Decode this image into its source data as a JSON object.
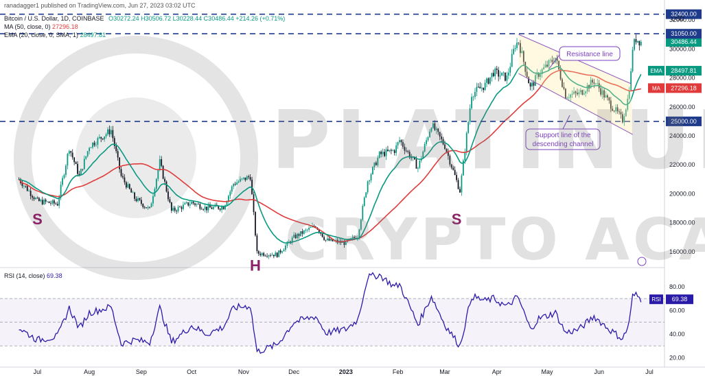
{
  "header": {
    "publisher": "ranadagger1 published on TradingView.com, Jun 27, 2023 03:02 UTC",
    "symbol": "Bitcoin / U.S. Dollar, 1D, COINBASE",
    "ohlc": "O30272.24 H30506.72 L30228.44 C30486.44 +214.26 (+0.71%)",
    "ma_label": "MA (50, close, 0)",
    "ma_value": "27296.18",
    "ema_label": "EMA (20, close, 0, SMA, 1)",
    "ema_value": "28497.81",
    "rsi_label": "RSI (14, close)",
    "rsi_value": "69.38",
    "currency": "USD"
  },
  "watermark": {
    "line1": "PLATINUM",
    "line2": "CRYPTO ACADEMY"
  },
  "colors": {
    "up": "#089981",
    "down": "#131722",
    "ema": "#089981",
    "ma": "#e03a3a",
    "rsi": "#2a1aa8",
    "level": "#1e3a8a",
    "pattern": "#8b2267",
    "annotation": "#7b3fbf"
  },
  "chart_data": [
    {
      "type": "candlestick",
      "title": "Bitcoin / U.S. Dollar, 1D, COINBASE",
      "ylim": [
        15000,
        33000
      ],
      "y_ticks": [
        "16000.00",
        "18000.00",
        "20000.00",
        "22000.00",
        "24000.00",
        "26000.00",
        "28000.00",
        "30000.00",
        "32000.00"
      ],
      "x_ticks": [
        "Jul",
        "Aug",
        "Sep",
        "Oct",
        "Nov",
        "Dec",
        "2023",
        "Feb",
        "Mar",
        "Apr",
        "May",
        "Jun",
        "Jul"
      ],
      "anchor_points": [
        [
          "2022-06-20",
          21000
        ],
        [
          "2022-07-01",
          19500
        ],
        [
          "2022-07-13",
          19300
        ],
        [
          "2022-07-20",
          23200
        ],
        [
          "2022-07-26",
          21200
        ],
        [
          "2022-08-01",
          23300
        ],
        [
          "2022-08-14",
          24400
        ],
        [
          "2022-08-20",
          21200
        ],
        [
          "2022-08-28",
          19700
        ],
        [
          "2022-09-06",
          18900
        ],
        [
          "2022-09-12",
          22200
        ],
        [
          "2022-09-19",
          18800
        ],
        [
          "2022-10-01",
          19400
        ],
        [
          "2022-10-10",
          19000
        ],
        [
          "2022-10-20",
          19100
        ],
        [
          "2022-10-26",
          20700
        ],
        [
          "2022-11-05",
          21200
        ],
        [
          "2022-11-09",
          15900
        ],
        [
          "2022-11-21",
          15800
        ],
        [
          "2022-12-01",
          17000
        ],
        [
          "2022-12-14",
          17800
        ],
        [
          "2022-12-20",
          16800
        ],
        [
          "2023-01-01",
          16600
        ],
        [
          "2023-01-08",
          17100
        ],
        [
          "2023-01-14",
          20900
        ],
        [
          "2023-01-21",
          22700
        ],
        [
          "2023-01-30",
          23000
        ],
        [
          "2023-02-02",
          23700
        ],
        [
          "2023-02-13",
          21800
        ],
        [
          "2023-02-21",
          24800
        ],
        [
          "2023-03-01",
          23300
        ],
        [
          "2023-03-10",
          20200
        ],
        [
          "2023-03-17",
          26900
        ],
        [
          "2023-03-25",
          27500
        ],
        [
          "2023-03-30",
          28400
        ],
        [
          "2023-04-07",
          28000
        ],
        [
          "2023-04-12",
          30300
        ],
        [
          "2023-04-14",
          30500
        ],
        [
          "2023-04-21",
          27300
        ],
        [
          "2023-04-26",
          28300
        ],
        [
          "2023-05-06",
          29400
        ],
        [
          "2023-05-12",
          26800
        ],
        [
          "2023-05-20",
          26900
        ],
        [
          "2023-05-29",
          27800
        ],
        [
          "2023-06-07",
          26300
        ],
        [
          "2023-06-15",
          25100
        ],
        [
          "2023-06-18",
          26500
        ],
        [
          "2023-06-20",
          28300
        ],
        [
          "2023-06-21",
          30100
        ],
        [
          "2023-06-23",
          30700
        ],
        [
          "2023-06-26",
          30486.44
        ]
      ],
      "ema_20_last": 28497.81,
      "ma_50_last": 27296.18,
      "horizontal_levels": [
        {
          "label": "32400.00",
          "value": 32400
        },
        {
          "label": "31050.00",
          "value": 31050
        },
        {
          "label": "25000.00",
          "value": 25000
        }
      ],
      "price_labels": [
        {
          "value": 30486.44,
          "text": "30486.44"
        },
        {
          "value": 28497.81,
          "tag": "EMA",
          "text": "28497.81"
        },
        {
          "value": 27296.18,
          "tag": "MA",
          "text": "27296.18"
        }
      ],
      "pattern_labels": [
        {
          "text": "S",
          "date": "2022-07-01",
          "price": 17900
        },
        {
          "text": "H",
          "date": "2022-11-08",
          "price": 14700
        },
        {
          "text": "S",
          "date": "2023-03-08",
          "price": 17900
        }
      ],
      "channel": {
        "upper": [
          [
            "2023-04-14",
            31000
          ],
          [
            "2023-06-20",
            27600
          ]
        ],
        "lower": [
          [
            "2023-04-14",
            28300
          ],
          [
            "2023-06-21",
            24100
          ]
        ]
      },
      "annotations": [
        {
          "text": "Resistance line"
        },
        {
          "text": "Support line of the descending channel",
          "lines": [
            "Support line of the",
            "descending channel"
          ]
        }
      ]
    },
    {
      "type": "line",
      "title": "RSI (14, close)",
      "ylim": [
        15,
        95
      ],
      "y_ticks": [
        "20.00",
        "40.00",
        "60.00",
        "80.00"
      ],
      "band": [
        30,
        70
      ],
      "anchor_points": [
        [
          "2022-06-20",
          45
        ],
        [
          "2022-07-01",
          35
        ],
        [
          "2022-07-13",
          38
        ],
        [
          "2022-07-20",
          62
        ],
        [
          "2022-07-26",
          45
        ],
        [
          "2022-08-01",
          58
        ],
        [
          "2022-08-14",
          63
        ],
        [
          "2022-08-20",
          32
        ],
        [
          "2022-08-28",
          35
        ],
        [
          "2022-09-06",
          33
        ],
        [
          "2022-09-12",
          62
        ],
        [
          "2022-09-19",
          33
        ],
        [
          "2022-10-01",
          47
        ],
        [
          "2022-10-10",
          40
        ],
        [
          "2022-10-20",
          46
        ],
        [
          "2022-10-26",
          62
        ],
        [
          "2022-11-05",
          64
        ],
        [
          "2022-11-09",
          25
        ],
        [
          "2022-11-21",
          31
        ],
        [
          "2022-12-01",
          50
        ],
        [
          "2022-12-14",
          55
        ],
        [
          "2022-12-20",
          41
        ],
        [
          "2023-01-01",
          44
        ],
        [
          "2023-01-08",
          52
        ],
        [
          "2023-01-14",
          88
        ],
        [
          "2023-01-21",
          90
        ],
        [
          "2023-01-30",
          80
        ],
        [
          "2023-02-02",
          82
        ],
        [
          "2023-02-13",
          48
        ],
        [
          "2023-02-21",
          72
        ],
        [
          "2023-03-01",
          48
        ],
        [
          "2023-03-10",
          30
        ],
        [
          "2023-03-17",
          72
        ],
        [
          "2023-03-25",
          68
        ],
        [
          "2023-03-30",
          70
        ],
        [
          "2023-04-07",
          63
        ],
        [
          "2023-04-12",
          70
        ],
        [
          "2023-04-14",
          70
        ],
        [
          "2023-04-21",
          44
        ],
        [
          "2023-04-26",
          53
        ],
        [
          "2023-05-06",
          58
        ],
        [
          "2023-05-12",
          41
        ],
        [
          "2023-05-20",
          44
        ],
        [
          "2023-05-29",
          55
        ],
        [
          "2023-06-07",
          44
        ],
        [
          "2023-06-15",
          36
        ],
        [
          "2023-06-18",
          45
        ],
        [
          "2023-06-20",
          60
        ],
        [
          "2023-06-21",
          72
        ],
        [
          "2023-06-23",
          73
        ],
        [
          "2023-06-26",
          69.38
        ]
      ]
    }
  ]
}
